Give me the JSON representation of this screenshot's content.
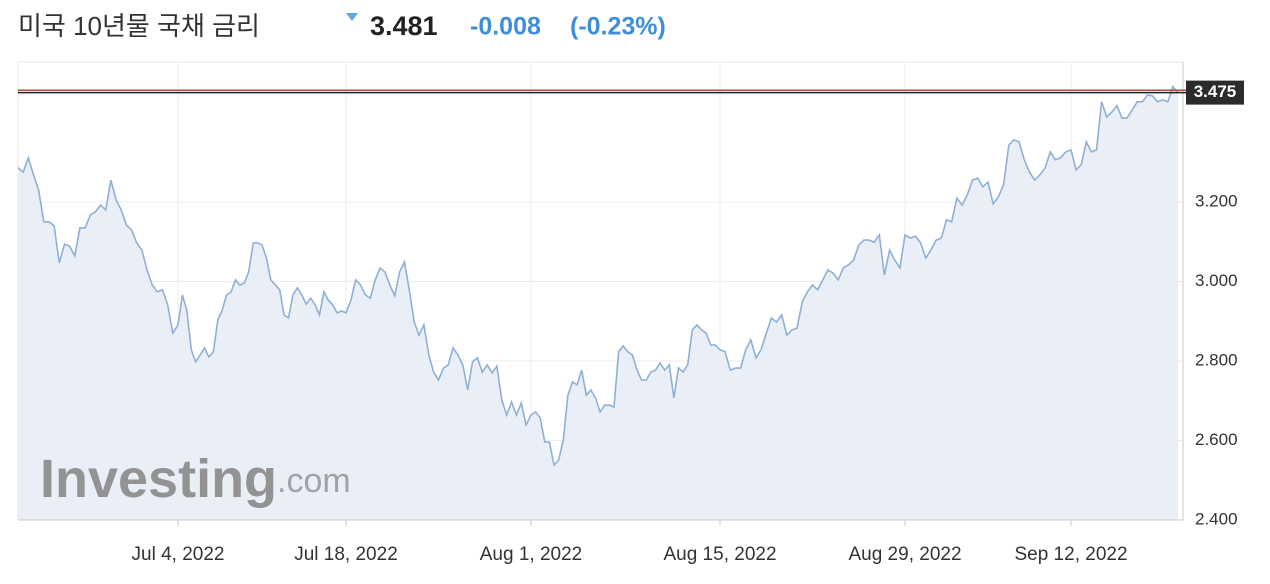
{
  "chart_data": {
    "type": "line",
    "title": "미국 10년물 국채 금리",
    "price": 3.481,
    "change": -0.008,
    "change_percent": -0.23,
    "change_percent_label": "(-0.23%)",
    "last_value": 3.475,
    "watermark": {
      "brand": "Investing",
      "suffix": ".com"
    },
    "color": "#8fb0d6",
    "fill": "#eaeef7",
    "grid": true,
    "ylim": [
      2.4,
      3.552
    ],
    "yticks": [
      {
        "value": 2.4,
        "label": "2.400"
      },
      {
        "value": 2.6,
        "label": "2.600"
      },
      {
        "value": 2.8,
        "label": "2.800"
      },
      {
        "value": 3.0,
        "label": "3.000"
      },
      {
        "value": 3.2,
        "label": "3.200"
      }
    ],
    "categories": [
      null,
      null,
      null,
      null,
      null,
      null,
      null,
      null,
      null,
      null,
      null,
      null,
      null,
      null,
      null,
      null,
      null,
      null,
      null,
      null,
      null,
      null,
      null,
      null,
      null,
      null,
      null,
      null,
      null,
      null,
      null,
      "Jul 4, 2022",
      null,
      null,
      null,
      null,
      null,
      null,
      null,
      null,
      null,
      null,
      null,
      null,
      null,
      null,
      null,
      null,
      null,
      null,
      null,
      null,
      null,
      null,
      null,
      null,
      null,
      null,
      null,
      null,
      null,
      null,
      null,
      null,
      null,
      null,
      null,
      null,
      null,
      "Jul 18, 2022",
      null,
      null,
      null,
      null,
      null,
      null,
      null,
      null,
      null,
      null,
      null,
      null,
      null,
      null,
      null,
      null,
      null,
      null,
      null,
      null,
      null,
      null,
      null,
      null,
      null,
      null,
      null,
      null,
      null,
      null,
      null,
      null,
      null,
      null,
      null,
      null,
      null,
      "Aug 1, 2022",
      null,
      null,
      null,
      null,
      null,
      null,
      null,
      null,
      null,
      null,
      null,
      null,
      null,
      null,
      null,
      null,
      null,
      null,
      null,
      null,
      null,
      null,
      null,
      null,
      null,
      null,
      null,
      null,
      null,
      null,
      null,
      null,
      null,
      null,
      null,
      null,
      null,
      null,
      null,
      null,
      "Aug 15, 2022",
      null,
      null,
      null,
      null,
      null,
      null,
      null,
      null,
      null,
      null,
      null,
      null,
      null,
      null,
      null,
      null,
      null,
      null,
      null,
      null,
      null,
      null,
      null,
      null,
      null,
      null,
      null,
      null,
      null,
      null,
      null,
      null,
      null,
      null,
      null,
      "Aug 29, 2022",
      null,
      null,
      null,
      null,
      null,
      null,
      null,
      null,
      null,
      null,
      null,
      null,
      null,
      null,
      null,
      null,
      null,
      null,
      null,
      null,
      null,
      null,
      null,
      null,
      null,
      null,
      null,
      null,
      null,
      null,
      null,
      "Sep 12, 2022",
      null,
      null,
      null,
      null,
      null,
      null,
      null,
      null,
      null,
      null,
      null,
      null,
      null,
      null,
      null,
      null,
      null,
      null,
      null,
      null,
      null
    ],
    "values": [
      3.286,
      3.275,
      3.311,
      3.268,
      3.23,
      3.15,
      3.15,
      3.14,
      3.047,
      3.094,
      3.089,
      3.064,
      3.135,
      3.135,
      3.167,
      3.175,
      3.192,
      3.18,
      3.255,
      3.205,
      3.18,
      3.142,
      3.13,
      3.097,
      3.079,
      3.029,
      2.991,
      2.974,
      2.979,
      2.941,
      2.87,
      2.891,
      2.966,
      2.928,
      2.828,
      2.798,
      2.815,
      2.833,
      2.81,
      2.823,
      2.903,
      2.928,
      2.966,
      2.974,
      3.004,
      2.991,
      2.996,
      3.024,
      3.097,
      3.097,
      3.092,
      3.059,
      3.004,
      2.991,
      2.979,
      2.916,
      2.908,
      2.966,
      2.984,
      2.966,
      2.943,
      2.958,
      2.941,
      2.916,
      2.974,
      2.953,
      2.941,
      2.921,
      2.926,
      2.921,
      2.953,
      3.004,
      2.991,
      2.966,
      2.958,
      3.004,
      3.034,
      3.024,
      2.991,
      2.964,
      3.024,
      3.049,
      2.979,
      2.898,
      2.865,
      2.891,
      2.815,
      2.772,
      2.752,
      2.782,
      2.79,
      2.833,
      2.815,
      2.79,
      2.727,
      2.798,
      2.808,
      2.772,
      2.79,
      2.77,
      2.787,
      2.702,
      2.664,
      2.697,
      2.664,
      2.694,
      2.639,
      2.664,
      2.672,
      2.657,
      2.596,
      2.596,
      2.538,
      2.551,
      2.601,
      2.714,
      2.747,
      2.74,
      2.777,
      2.714,
      2.727,
      2.707,
      2.672,
      2.689,
      2.689,
      2.684,
      2.823,
      2.838,
      2.823,
      2.815,
      2.777,
      2.752,
      2.752,
      2.772,
      2.777,
      2.795,
      2.777,
      2.79,
      2.707,
      2.782,
      2.772,
      2.79,
      2.878,
      2.891,
      2.878,
      2.87,
      2.84,
      2.84,
      2.828,
      2.823,
      2.777,
      2.782,
      2.782,
      2.828,
      2.853,
      2.808,
      2.828,
      2.87,
      2.908,
      2.898,
      2.916,
      2.865,
      2.878,
      2.883,
      2.948,
      2.974,
      2.991,
      2.979,
      3.004,
      3.029,
      3.021,
      3.004,
      3.034,
      3.042,
      3.054,
      3.092,
      3.104,
      3.104,
      3.099,
      3.117,
      3.016,
      3.079,
      3.054,
      3.034,
      3.117,
      3.109,
      3.114,
      3.097,
      3.059,
      3.079,
      3.104,
      3.109,
      3.155,
      3.15,
      3.21,
      3.192,
      3.218,
      3.255,
      3.26,
      3.238,
      3.25,
      3.195,
      3.213,
      3.243,
      3.343,
      3.356,
      3.351,
      3.306,
      3.275,
      3.255,
      3.268,
      3.286,
      3.326,
      3.306,
      3.311,
      3.326,
      3.331,
      3.281,
      3.293,
      3.351,
      3.326,
      3.331,
      3.452,
      3.414,
      3.426,
      3.442,
      3.411,
      3.411,
      3.431,
      3.452,
      3.452,
      3.469,
      3.467,
      3.452,
      3.457,
      3.452,
      3.49,
      3.475
    ]
  }
}
